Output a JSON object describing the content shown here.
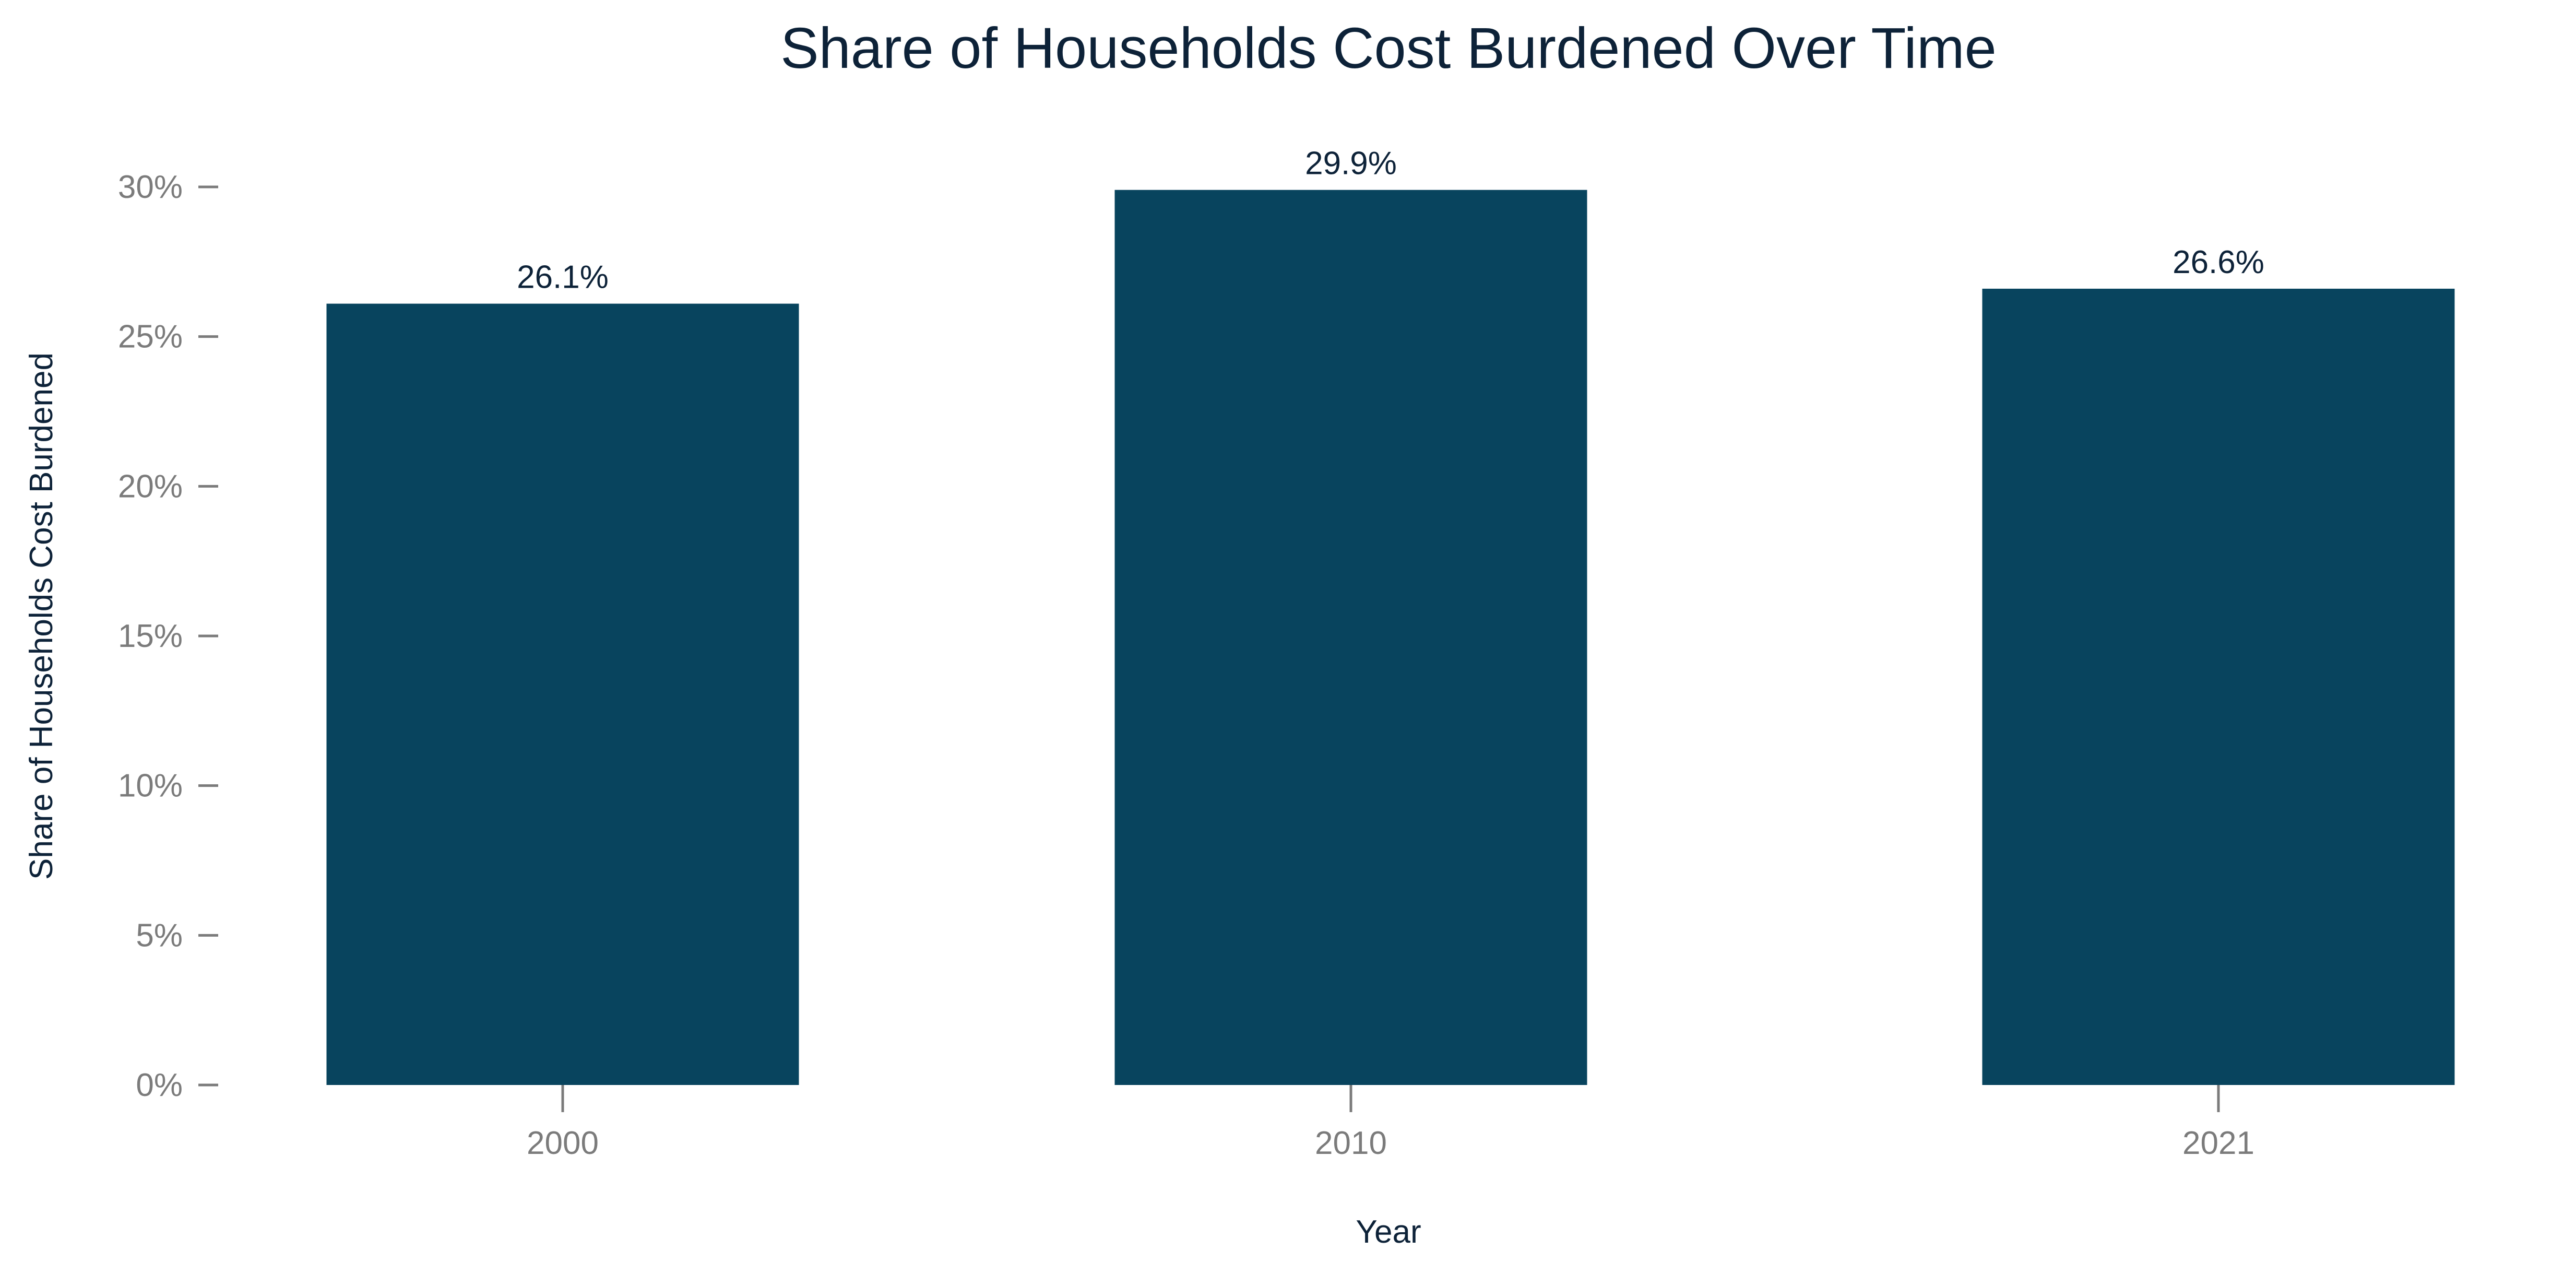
{
  "chart_data": {
    "type": "bar",
    "title": "Share of Households Cost Burdened Over Time",
    "xlabel": "Year",
    "ylabel": "Share of Households Cost Burdened",
    "categories": [
      "2000",
      "2010",
      "2021"
    ],
    "values": [
      26.1,
      29.9,
      26.6
    ],
    "data_labels": [
      "26.1%",
      "29.9%",
      "26.6%"
    ],
    "ylim": [
      0,
      30
    ],
    "yticks": [
      0,
      5,
      10,
      15,
      20,
      25,
      30
    ],
    "ytick_labels": [
      "0%",
      "5%",
      "10%",
      "15%",
      "20%",
      "25%",
      "30%"
    ],
    "grid": false,
    "legend": "none"
  },
  "colors": {
    "bar": "#08445e",
    "title": "#0d2238",
    "axis_title": "#0d2238",
    "data_label": "#0d2238",
    "tick_label": "#7b7b7b",
    "tick_mark": "#7b7b7b"
  }
}
